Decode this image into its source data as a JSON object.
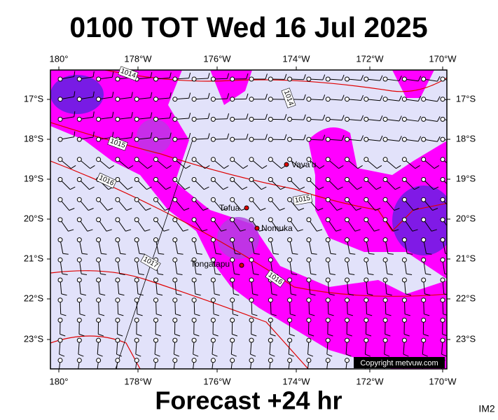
{
  "title": "0100 TOT Wed 16 Jul 2025",
  "lon_ticks": [
    "180°",
    "178°W",
    "176°W",
    "174°W",
    "172°W",
    "170°W"
  ],
  "lat_ticks": [
    "17°S",
    "18°S",
    "19°S",
    "20°S",
    "21°S",
    "22°S",
    "23°S"
  ],
  "places": [
    "Vava'u",
    "Tofua",
    "Nomuka",
    "Tongatapu"
  ],
  "isobar_labels": [
    "1014",
    "1014",
    "1015",
    "1016",
    "1015",
    "1017",
    "1016"
  ],
  "copyright": "Copyright metvuw.com",
  "footer": "Forecast +24 hr",
  "image_id": "IM2"
}
